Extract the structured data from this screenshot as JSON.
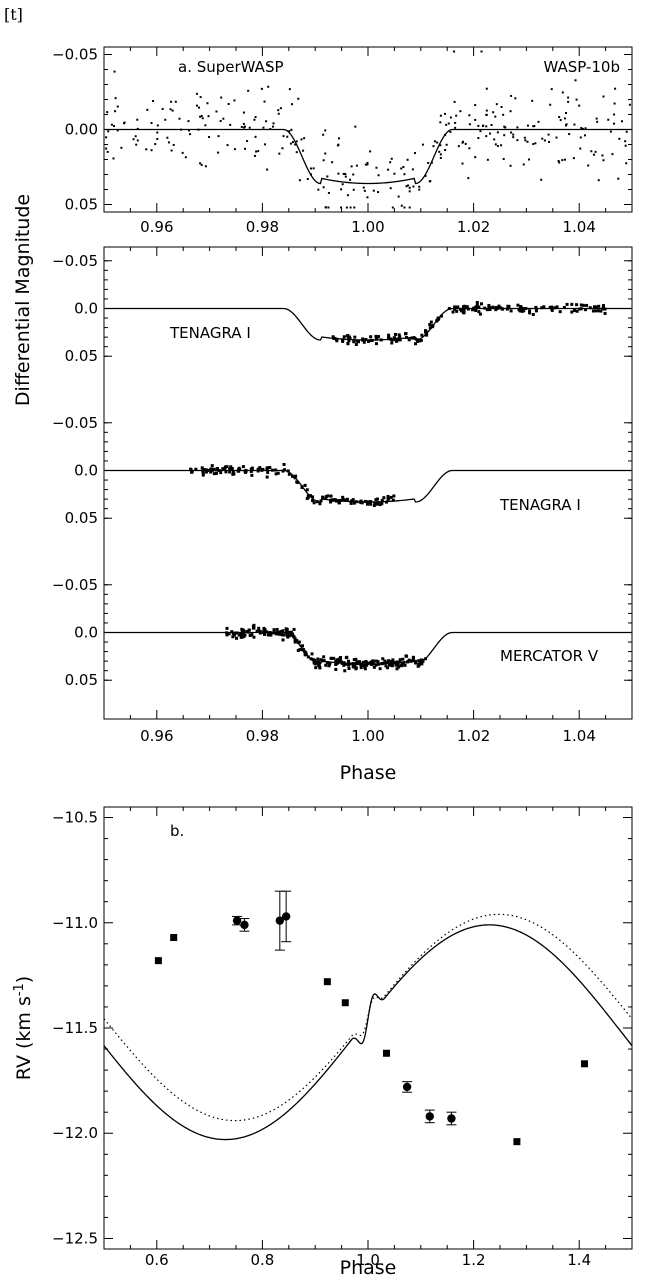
{
  "corner_tag": "[t]",
  "shared_ylabel": "Differential Magnitude",
  "chart_data": [
    {
      "type": "scatter",
      "id": "superwasp",
      "label": "a. SuperWASP",
      "planet": "WASP-10b",
      "xlim": [
        0.95,
        1.05
      ],
      "ylim": [
        0.055,
        -0.055
      ],
      "xticks": [
        0.96,
        0.98,
        1.0,
        1.02,
        1.04
      ],
      "xtick_labels": [
        "0.96",
        "0.98",
        "1.00",
        "1.02",
        "1.04"
      ],
      "yticks": [
        -0.05,
        0.0,
        0.05
      ],
      "ytick_labels": [
        "-0.05",
        "0.00",
        "0.05"
      ],
      "model": {
        "t1": 0.984,
        "t2": 0.991,
        "t3": 1.009,
        "t4": 1.016,
        "depth": 0.036
      },
      "scatter_sigma": 0.014,
      "n_points": 340,
      "x": [],
      "y": []
    },
    {
      "type": "scatter",
      "id": "tenagra1",
      "label": "TENAGRA I",
      "xlim": [
        0.95,
        1.05
      ],
      "ylim": [
        0.055,
        -0.055
      ],
      "yticks": [
        -0.05,
        0.0,
        0.05
      ],
      "ytick_labels": [
        "-0.05",
        "0.0",
        "0.05"
      ],
      "data_range": [
        0.993,
        1.045
      ],
      "model": {
        "t1": 0.984,
        "t2": 0.991,
        "t3": 1.009,
        "t4": 1.016,
        "depth": 0.033
      },
      "scatter_sigma": 0.0025,
      "n_points": 190,
      "x": [],
      "y": []
    },
    {
      "type": "scatter",
      "id": "tenagra2",
      "label": "TENAGRA I",
      "xlim": [
        0.95,
        1.05
      ],
      "ylim": [
        0.055,
        -0.055
      ],
      "yticks": [
        -0.05,
        0.0,
        0.05
      ],
      "ytick_labels": [
        "-0.05",
        "0.0",
        "0.05"
      ],
      "data_range": [
        0.966,
        1.005
      ],
      "model": {
        "t1": 0.984,
        "t2": 0.991,
        "t3": 1.009,
        "t4": 1.016,
        "depth": 0.033
      },
      "scatter_sigma": 0.0025,
      "n_points": 150,
      "x": [],
      "y": []
    },
    {
      "type": "scatter",
      "id": "mercator",
      "label": "MERCATOR V",
      "xlim": [
        0.95,
        1.05
      ],
      "ylim": [
        0.055,
        -0.055
      ],
      "xticks": [
        0.96,
        0.98,
        1.0,
        1.02,
        1.04
      ],
      "xtick_labels": [
        "0.96",
        "0.98",
        "1.00",
        "1.02",
        "1.04"
      ],
      "yticks": [
        -0.05,
        0.0,
        0.05
      ],
      "ytick_labels": [
        "-0.05",
        "0.0",
        "0.05"
      ],
      "xlabel": "Phase",
      "data_range": [
        0.973,
        1.011
      ],
      "model": {
        "t1": 0.984,
        "t2": 0.991,
        "t3": 1.009,
        "t4": 1.016,
        "depth": 0.033
      },
      "scatter_sigma": 0.0025,
      "n_points": 260,
      "x": [],
      "y": []
    },
    {
      "type": "scatter",
      "id": "rv",
      "label": "b.",
      "xlabel": "Phase",
      "ylabel": "RV (km s",
      "ylabel_sup": "-1",
      "ylabel_end": ")",
      "xlim": [
        0.5,
        1.5
      ],
      "ylim": [
        -12.55,
        -10.45
      ],
      "xticks": [
        0.6,
        0.8,
        1.0,
        1.2,
        1.4
      ],
      "xtick_labels": [
        "0.6",
        "0.8",
        "1.0",
        "1.2",
        "1.4"
      ],
      "yticks": [
        -10.5,
        -11.0,
        -11.5,
        -12.0,
        -12.5
      ],
      "ytick_labels": [
        "-10.5",
        "-11.0",
        "-11.5",
        "-12.0",
        "-12.5"
      ],
      "rv_model": {
        "gamma": -11.52,
        "K": 0.51
      },
      "rv_model_dotted": {
        "gamma": -11.45,
        "K": 0.49,
        "shift": 0.018
      },
      "points_square": [
        {
          "x": 0.603,
          "y": -11.18
        },
        {
          "x": 0.632,
          "y": -11.07
        },
        {
          "x": 0.923,
          "y": -11.28
        },
        {
          "x": 0.957,
          "y": -11.38
        },
        {
          "x": 1.035,
          "y": -11.62
        },
        {
          "x": 1.282,
          "y": -12.04
        },
        {
          "x": 1.41,
          "y": -11.67
        }
      ],
      "points_circle": [
        {
          "x": 0.752,
          "y": -10.99,
          "err": 0.02
        },
        {
          "x": 0.766,
          "y": -11.01,
          "err": 0.03
        },
        {
          "x": 0.833,
          "y": -10.99,
          "err": 0.14
        },
        {
          "x": 0.845,
          "y": -10.97,
          "err": 0.12
        },
        {
          "x": 1.074,
          "y": -11.78,
          "err": 0.025
        },
        {
          "x": 1.117,
          "y": -11.92,
          "err": 0.03
        },
        {
          "x": 1.158,
          "y": -11.93,
          "err": 0.03
        }
      ]
    }
  ]
}
